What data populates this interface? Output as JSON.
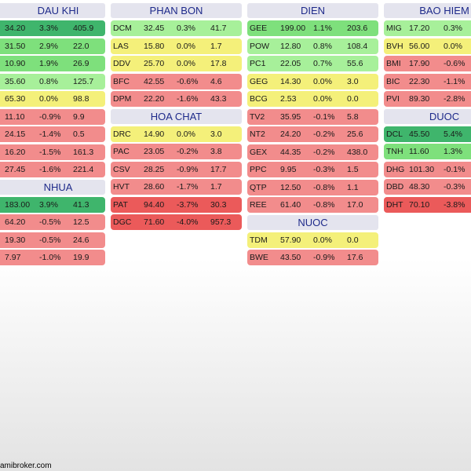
{
  "footer": "amibroker.com",
  "columns": [
    {
      "groups": [
        {
          "title": "DAU KHI",
          "rows": [
            {
              "t": "",
              "p": "34.20",
              "c": "3.3%",
              "v": "405.9",
              "k": "dg"
            },
            {
              "t": "",
              "p": "31.50",
              "c": "2.9%",
              "v": "22.0",
              "k": "g"
            },
            {
              "t": "",
              "p": "10.90",
              "c": "1.9%",
              "v": "26.9",
              "k": "g"
            },
            {
              "t": "",
              "p": "35.60",
              "c": "0.8%",
              "v": "125.7",
              "k": "lg"
            },
            {
              "t": "",
              "p": "65.30",
              "c": "0.0%",
              "v": "98.8",
              "k": "y"
            },
            {
              "t": "",
              "p": "11.10",
              "c": "-0.9%",
              "v": "9.9",
              "k": "r"
            },
            {
              "t": "",
              "p": "24.15",
              "c": "-1.4%",
              "v": "0.5",
              "k": "r"
            },
            {
              "t": "",
              "p": "16.20",
              "c": "-1.5%",
              "v": "161.3",
              "k": "r"
            },
            {
              "t": "",
              "p": "27.45",
              "c": "-1.6%",
              "v": "221.4",
              "k": "r"
            }
          ]
        },
        {
          "title": "NHUA",
          "rows": [
            {
              "t": "",
              "p": "183.00",
              "c": "3.9%",
              "v": "41.3",
              "k": "dg"
            },
            {
              "t": "",
              "p": "64.20",
              "c": "-0.5%",
              "v": "12.5",
              "k": "r"
            },
            {
              "t": "",
              "p": "19.30",
              "c": "-0.5%",
              "v": "24.6",
              "k": "r"
            },
            {
              "t": "",
              "p": "7.97",
              "c": "-1.0%",
              "v": "19.9",
              "k": "r"
            }
          ]
        }
      ]
    },
    {
      "groups": [
        {
          "title": "PHAN BON",
          "rows": [
            {
              "t": "DCM",
              "p": "32.45",
              "c": "0.3%",
              "v": "41.7",
              "k": "lg"
            },
            {
              "t": "LAS",
              "p": "15.80",
              "c": "0.0%",
              "v": "1.7",
              "k": "y"
            },
            {
              "t": "DDV",
              "p": "25.70",
              "c": "0.0%",
              "v": "17.8",
              "k": "y"
            },
            {
              "t": "BFC",
              "p": "42.55",
              "c": "-0.6%",
              "v": "4.6",
              "k": "r"
            },
            {
              "t": "DPM",
              "p": "22.20",
              "c": "-1.6%",
              "v": "43.3",
              "k": "r"
            }
          ]
        },
        {
          "title": "HOA CHAT",
          "rows": [
            {
              "t": "DRC",
              "p": "14.90",
              "c": "0.0%",
              "v": "3.0",
              "k": "y"
            },
            {
              "t": "PAC",
              "p": "23.05",
              "c": "-0.2%",
              "v": "3.8",
              "k": "r"
            },
            {
              "t": "CSV",
              "p": "28.25",
              "c": "-0.9%",
              "v": "17.7",
              "k": "r"
            },
            {
              "t": "HVT",
              "p": "28.60",
              "c": "-1.7%",
              "v": "1.7",
              "k": "r"
            },
            {
              "t": "PAT",
              "p": "94.40",
              "c": "-3.7%",
              "v": "30.3",
              "k": "dr"
            },
            {
              "t": "DGC",
              "p": "71.60",
              "c": "-4.0%",
              "v": "957.3",
              "k": "dr"
            }
          ]
        }
      ]
    },
    {
      "groups": [
        {
          "title": "DIEN",
          "rows": [
            {
              "t": "GEE",
              "p": "199.00",
              "c": "1.1%",
              "v": "203.6",
              "k": "g"
            },
            {
              "t": "POW",
              "p": "12.80",
              "c": "0.8%",
              "v": "108.4",
              "k": "lg"
            },
            {
              "t": "PC1",
              "p": "22.05",
              "c": "0.7%",
              "v": "55.6",
              "k": "lg"
            },
            {
              "t": "GEG",
              "p": "14.30",
              "c": "0.0%",
              "v": "3.0",
              "k": "y"
            },
            {
              "t": "BCG",
              "p": "2.53",
              "c": "0.0%",
              "v": "0.0",
              "k": "y"
            },
            {
              "t": "TV2",
              "p": "35.95",
              "c": "-0.1%",
              "v": "5.8",
              "k": "r"
            },
            {
              "t": "NT2",
              "p": "24.20",
              "c": "-0.2%",
              "v": "25.6",
              "k": "r"
            },
            {
              "t": "GEX",
              "p": "44.35",
              "c": "-0.2%",
              "v": "438.0",
              "k": "r"
            },
            {
              "t": "PPC",
              "p": "9.95",
              "c": "-0.3%",
              "v": "1.5",
              "k": "r"
            },
            {
              "t": "QTP",
              "p": "12.50",
              "c": "-0.8%",
              "v": "1.1",
              "k": "r"
            },
            {
              "t": "REE",
              "p": "61.40",
              "c": "-0.8%",
              "v": "17.0",
              "k": "r"
            }
          ]
        },
        {
          "title": "NUOC",
          "rows": [
            {
              "t": "TDM",
              "p": "57.90",
              "c": "0.0%",
              "v": "0.0",
              "k": "y"
            },
            {
              "t": "BWE",
              "p": "43.50",
              "c": "-0.9%",
              "v": "17.6",
              "k": "r"
            }
          ]
        }
      ]
    },
    {
      "groups": [
        {
          "title": "BAO HIEM",
          "rows": [
            {
              "t": "MIG",
              "p": "17.20",
              "c": "0.3%",
              "v": "",
              "k": "lg"
            },
            {
              "t": "BVH",
              "p": "56.00",
              "c": "0.0%",
              "v": "",
              "k": "y"
            },
            {
              "t": "BMI",
              "p": "17.90",
              "c": "-0.6%",
              "v": "",
              "k": "r"
            },
            {
              "t": "BIC",
              "p": "22.30",
              "c": "-1.1%",
              "v": "",
              "k": "r"
            },
            {
              "t": "PVI",
              "p": "89.30",
              "c": "-2.8%",
              "v": "",
              "k": "r"
            }
          ]
        },
        {
          "title": "DUOC",
          "rows": [
            {
              "t": "DCL",
              "p": "45.50",
              "c": "5.4%",
              "v": "",
              "k": "dg"
            },
            {
              "t": "TNH",
              "p": "11.60",
              "c": "1.3%",
              "v": "",
              "k": "g"
            },
            {
              "t": "DHG",
              "p": "101.30",
              "c": "-0.1%",
              "v": "",
              "k": "r"
            },
            {
              "t": "DBD",
              "p": "48.30",
              "c": "-0.3%",
              "v": "",
              "k": "r"
            },
            {
              "t": "DHT",
              "p": "70.10",
              "c": "-3.8%",
              "v": "",
              "k": "dr"
            }
          ]
        }
      ]
    }
  ]
}
